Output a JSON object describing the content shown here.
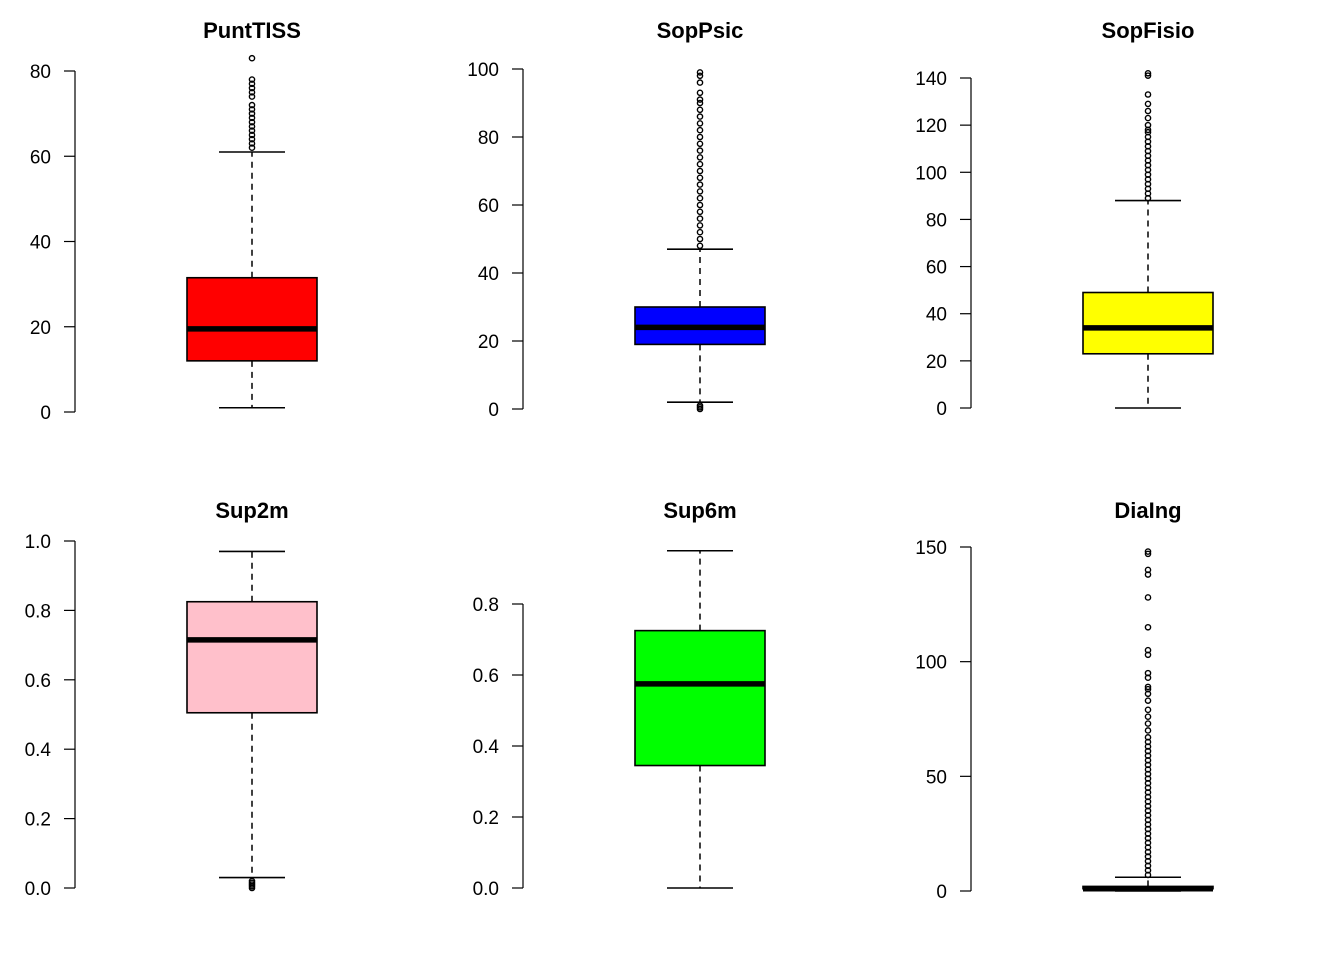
{
  "chart_data": [
    {
      "type": "box",
      "title": "PuntTISS",
      "fill": "#ff0000",
      "ylim": [
        0,
        82
      ],
      "yticks": [
        0,
        20,
        40,
        60,
        80
      ],
      "ytick_labels": [
        "0",
        "20",
        "40",
        "60",
        "80"
      ],
      "whisker_low": 1,
      "q1": 12,
      "median": 19.5,
      "q3": 31.5,
      "whisker_high": 61,
      "outliers": [
        62,
        63,
        64,
        65,
        66,
        67,
        68,
        69,
        70,
        71,
        72,
        74,
        75,
        76,
        77,
        78,
        83
      ]
    },
    {
      "type": "box",
      "title": "SopPsic",
      "fill": "#0000ff",
      "ylim": [
        0,
        100
      ],
      "yticks": [
        0,
        20,
        40,
        60,
        80,
        100
      ],
      "ytick_labels": [
        "0",
        "20",
        "40",
        "60",
        "80",
        "100"
      ],
      "whisker_low": 2,
      "q1": 19,
      "median": 24,
      "q3": 30,
      "whisker_high": 47,
      "outliers": [
        0,
        0.5,
        1,
        48,
        50,
        52,
        54,
        56,
        58,
        60,
        62,
        64,
        66,
        68,
        70,
        72,
        74,
        76,
        78,
        80,
        82,
        84,
        86,
        88,
        90,
        91,
        93,
        96,
        98,
        99
      ]
    },
    {
      "type": "box",
      "title": "SopFisio",
      "fill": "#ffff00",
      "ylim": [
        0,
        140
      ],
      "yticks": [
        0,
        20,
        40,
        60,
        80,
        100,
        120,
        140
      ],
      "ytick_labels": [
        "0",
        "20",
        "40",
        "60",
        "80",
        "100",
        "120",
        "140"
      ],
      "whisker_low": 0,
      "q1": 23,
      "median": 34,
      "q3": 49,
      "whisker_high": 88,
      "outliers": [
        89,
        91,
        93,
        95,
        97,
        99,
        101,
        103,
        105,
        107,
        109,
        111,
        113,
        115,
        117,
        118,
        120,
        123,
        126,
        129,
        133,
        141,
        142
      ]
    },
    {
      "type": "box",
      "title": "Sup2m",
      "fill": "#ffc0cb",
      "ylim": [
        0,
        1
      ],
      "yticks": [
        0,
        0.2,
        0.4,
        0.6,
        0.8,
        1.0
      ],
      "ytick_labels": [
        "0.0",
        "0.2",
        "0.4",
        "0.6",
        "0.8",
        "1.0"
      ],
      "whisker_low": 0.03,
      "q1": 0.505,
      "median": 0.715,
      "q3": 0.825,
      "whisker_high": 0.97,
      "outliers": [
        0.0,
        0.005,
        0.01,
        0.015,
        0.02
      ]
    },
    {
      "type": "box",
      "title": "Sup6m",
      "fill": "#00ff00",
      "ylim": [
        0,
        0.8
      ],
      "yticks": [
        0,
        0.2,
        0.4,
        0.6,
        0.8
      ],
      "ytick_labels": [
        "0.0",
        "0.2",
        "0.4",
        "0.6",
        "0.8"
      ],
      "whisker_low": 0,
      "q1": 0.345,
      "median": 0.575,
      "q3": 0.725,
      "whisker_high": 0.95,
      "outliers": []
    },
    {
      "type": "box",
      "title": "DiaIng",
      "fill": "#ffffff",
      "ylim": [
        0,
        150
      ],
      "yticks": [
        0,
        50,
        100,
        150
      ],
      "ytick_labels": [
        "0",
        "50",
        "100",
        "150"
      ],
      "whisker_low": 0,
      "q1": 1,
      "median": 1,
      "q3": 2,
      "whisker_high": 6,
      "outliers": [
        7,
        9,
        11,
        13,
        15,
        17,
        19,
        21,
        23,
        25,
        27,
        29,
        31,
        33,
        35,
        37,
        39,
        41,
        43,
        45,
        47,
        49,
        51,
        53,
        55,
        57,
        59,
        61,
        63,
        65,
        67,
        70,
        73,
        76,
        79,
        83,
        86,
        88,
        89,
        93,
        95,
        103,
        105,
        115,
        128,
        138,
        140,
        147,
        148
      ]
    }
  ]
}
